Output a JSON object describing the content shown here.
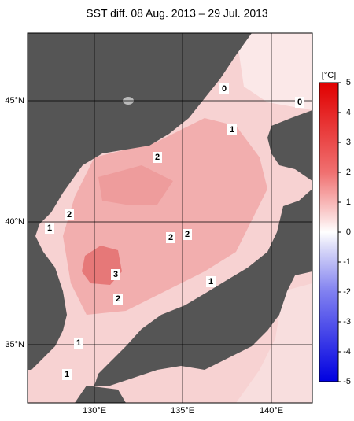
{
  "title": "SST diff. 08 Aug. 2013 – 29 Jul. 2013",
  "lat_labels": [
    "45°N",
    "40°N",
    "35°N"
  ],
  "lon_labels": [
    "130°E",
    "135°E",
    "140°E"
  ],
  "colorbar": {
    "unit": "[°C]",
    "clim": [
      -5,
      5
    ],
    "ticks": [
      5,
      4,
      3,
      2,
      1,
      0,
      -1,
      -2,
      -3,
      -4,
      -5
    ]
  },
  "contour_labels": [
    "1",
    "2",
    "2",
    "1",
    "2",
    "2",
    "3",
    "2",
    "1",
    "1",
    "1",
    "0",
    "0"
  ]
}
